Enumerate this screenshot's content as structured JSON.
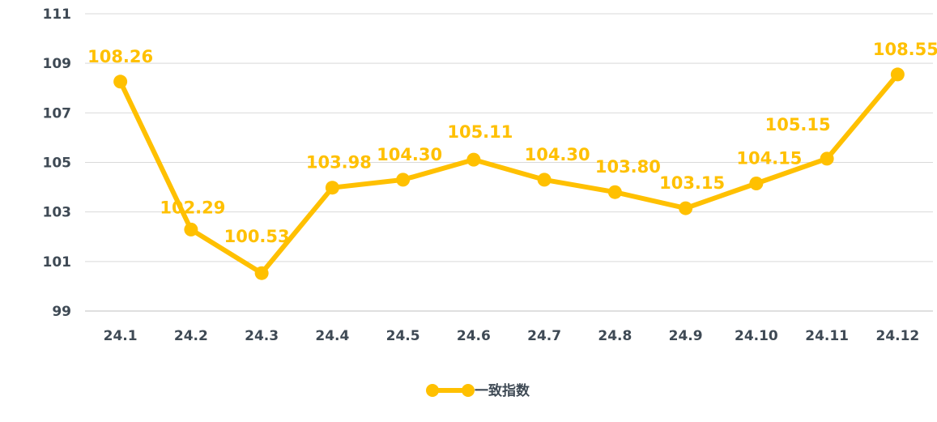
{
  "chart_data": {
    "type": "line",
    "title": "",
    "xlabel": "",
    "ylabel": "",
    "categories": [
      "24.1",
      "24.2",
      "24.3",
      "24.4",
      "24.5",
      "24.6",
      "24.7",
      "24.8",
      "24.9",
      "24.10",
      "24.11",
      "24.12"
    ],
    "series": [
      {
        "name": "一致指数",
        "values": [
          108.26,
          102.29,
          100.53,
          103.98,
          104.3,
          105.11,
          104.3,
          103.8,
          103.15,
          104.15,
          105.15,
          108.55
        ],
        "labels": [
          "108.26",
          "102.29",
          "100.53",
          "103.98",
          "104.30",
          "105.11",
          "104.30",
          "103.80",
          "103.15",
          "104.15",
          "105.15",
          "108.55"
        ],
        "color": "#ffc000"
      }
    ],
    "ylim": [
      99,
      111
    ],
    "yticks": [
      99,
      101,
      103,
      105,
      107,
      109,
      111
    ],
    "grid": true,
    "legend_position": "bottom",
    "colors": {
      "series": "#ffc000",
      "grid": "#d9d9d9",
      "axis": "#bfbfbf",
      "tick_text": "#3f4a55"
    }
  }
}
